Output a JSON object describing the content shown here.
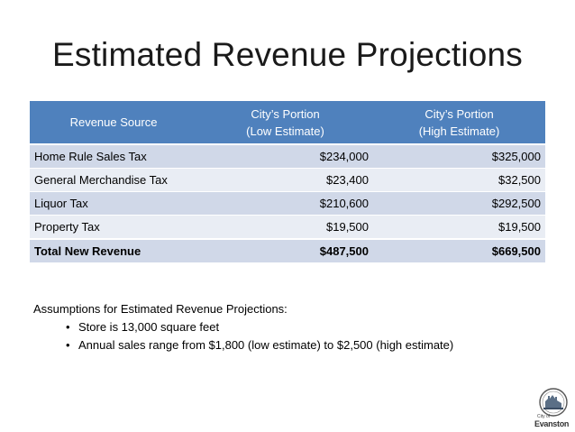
{
  "title": "Estimated Revenue Projections",
  "table": {
    "headers": {
      "source": "Revenue Source",
      "low_line1": "City’s Portion",
      "low_line2": "(Low Estimate)",
      "high_line1": "City’s Portion",
      "high_line2": "(High Estimate)"
    },
    "rows": [
      {
        "source": "Home Rule Sales Tax",
        "low": "$234,000",
        "high": "$325,000"
      },
      {
        "source": "General Merchandise Tax",
        "low": "$23,400",
        "high": "$32,500"
      },
      {
        "source": "Liquor Tax",
        "low": "$210,600",
        "high": "$292,500"
      },
      {
        "source": "Property Tax",
        "low": "$19,500",
        "high": "$19,500"
      }
    ],
    "total": {
      "source": "Total New Revenue",
      "low": "$487,500",
      "high": "$669,500"
    }
  },
  "assumptions": {
    "heading": "Assumptions for Estimated Revenue Projections:",
    "items": [
      "Store is 13,000 square feet",
      "Annual sales range from $1,800 (low estimate) to $2,500 (high estimate)"
    ]
  },
  "logo": {
    "small_text": "City of",
    "name": "Evanston",
    "icon": "city-seal-icon"
  },
  "colors": {
    "header_bg": "#4f81bd",
    "row_dark": "#d0d8e8",
    "row_light": "#e9edf4"
  }
}
